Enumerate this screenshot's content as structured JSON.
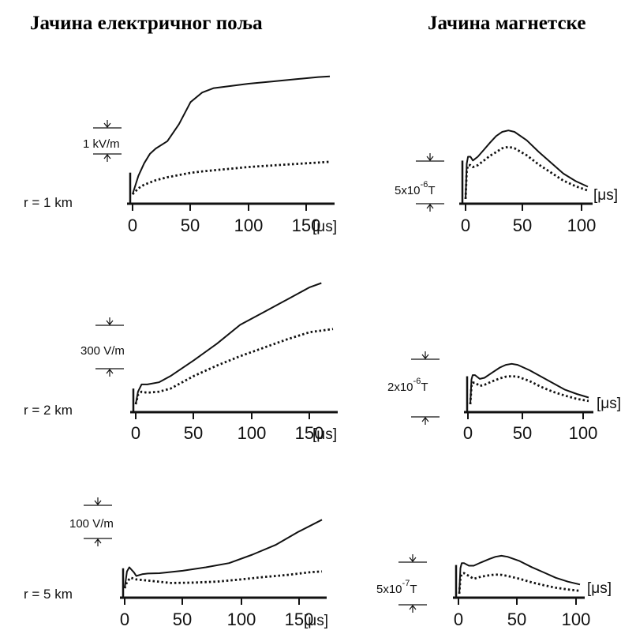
{
  "headings": {
    "electric": "Јачина електричног поља",
    "magnetic": "Јачина магнетске"
  },
  "chart_data": [
    {
      "type": "line",
      "quantity": "electric",
      "distance_label": "r = 1 km",
      "scale_label": "1 kV/m",
      "x_unit": "[μs]",
      "x_ticks": [
        "0",
        "50",
        "100",
        "150"
      ],
      "xlim": [
        0,
        170
      ],
      "ylim_kV_per_m": [
        0,
        1.8
      ],
      "series": [
        {
          "style": "solid",
          "x": [
            0,
            5,
            10,
            15,
            20,
            30,
            40,
            50,
            60,
            70,
            80,
            100,
            120,
            140,
            160,
            170
          ],
          "y": [
            0,
            0.25,
            0.42,
            0.55,
            0.62,
            0.72,
            0.95,
            1.25,
            1.38,
            1.44,
            1.46,
            1.5,
            1.53,
            1.56,
            1.59,
            1.6
          ]
        },
        {
          "style": "dotted",
          "x": [
            0,
            5,
            10,
            20,
            30,
            40,
            50,
            60,
            80,
            100,
            120,
            140,
            160,
            170
          ],
          "y": [
            0,
            0.08,
            0.13,
            0.19,
            0.23,
            0.26,
            0.29,
            0.31,
            0.34,
            0.37,
            0.39,
            0.41,
            0.43,
            0.44
          ]
        }
      ]
    },
    {
      "type": "line",
      "quantity": "electric",
      "distance_label": "r = 2 km",
      "scale_label": "300 V/m",
      "x_unit": "[μs]",
      "x_ticks": [
        "0",
        "50",
        "100",
        "150"
      ],
      "xlim": [
        0,
        170
      ],
      "ylim_V_per_m": [
        0,
        650
      ],
      "series": [
        {
          "style": "solid",
          "x": [
            0,
            2,
            5,
            10,
            20,
            30,
            50,
            70,
            90,
            110,
            130,
            150,
            160
          ],
          "y": [
            0,
            60,
            95,
            95,
            105,
            135,
            210,
            290,
            380,
            440,
            500,
            560,
            580
          ]
        },
        {
          "style": "dotted",
          "x": [
            0,
            2,
            5,
            10,
            20,
            30,
            50,
            70,
            90,
            110,
            130,
            150,
            170
          ],
          "y": [
            0,
            45,
            60,
            55,
            60,
            75,
            135,
            185,
            230,
            270,
            310,
            345,
            360
          ]
        }
      ]
    },
    {
      "type": "line",
      "quantity": "electric",
      "distance_label": "r = 5 km",
      "scale_label": "100 V/m",
      "x_unit": "[μs]",
      "x_ticks": [
        "0",
        "50",
        "100",
        "150"
      ],
      "xlim": [
        0,
        170
      ],
      "ylim_V_per_m": [
        0,
        260
      ],
      "series": [
        {
          "style": "solid",
          "x": [
            0,
            2,
            4,
            8,
            10,
            15,
            20,
            30,
            50,
            70,
            90,
            110,
            130,
            150,
            170
          ],
          "y": [
            0,
            48,
            60,
            45,
            35,
            40,
            42,
            43,
            50,
            60,
            72,
            96,
            124,
            162,
            196
          ]
        },
        {
          "style": "dotted",
          "x": [
            0,
            2,
            5,
            10,
            20,
            40,
            60,
            80,
            100,
            120,
            140,
            160,
            170
          ],
          "y": [
            0,
            18,
            30,
            25,
            22,
            15,
            16,
            19,
            25,
            32,
            38,
            46,
            48
          ]
        }
      ]
    },
    {
      "type": "line",
      "quantity": "magnetic",
      "distance_label": "r = 1 km",
      "scale_label": "5x10^-6 T",
      "scale_base": "5x10",
      "scale_exp": "-6",
      "scale_unit": "T",
      "x_unit": "[μs]",
      "x_ticks": [
        "0",
        "50",
        "100"
      ],
      "xlim": [
        0,
        100
      ],
      "ylim_uT": [
        0,
        18
      ],
      "series": [
        {
          "style": "solid",
          "x": [
            0,
            1,
            2,
            4,
            6,
            10,
            15,
            20,
            25,
            30,
            35,
            40,
            50,
            60,
            70,
            80,
            90,
            100
          ],
          "y": [
            0,
            7.5,
            9.0,
            9.0,
            8.2,
            9.0,
            10.5,
            12.0,
            13.4,
            14.3,
            14.6,
            14.3,
            12.5,
            10.0,
            7.7,
            5.4,
            3.8,
            2.6
          ]
        },
        {
          "style": "dotted",
          "x": [
            0,
            1,
            2,
            4,
            6,
            10,
            15,
            20,
            25,
            30,
            35,
            40,
            50,
            60,
            70,
            80,
            90,
            100
          ],
          "y": [
            0,
            6.0,
            7.2,
            7.2,
            6.8,
            7.2,
            8.2,
            9.2,
            10.0,
            10.8,
            11.1,
            10.8,
            9.3,
            7.3,
            5.6,
            3.9,
            2.7,
            1.8
          ]
        }
      ]
    },
    {
      "type": "line",
      "quantity": "magnetic",
      "distance_label": "r = 2 km",
      "scale_label": "2x10^-6 T",
      "scale_base": "2x10",
      "scale_exp": "-6",
      "scale_unit": "T",
      "x_unit": "[μs]",
      "x_ticks": [
        "0",
        "50",
        "100"
      ],
      "xlim": [
        0,
        100
      ],
      "ylim_uT": [
        0,
        6
      ],
      "series": [
        {
          "style": "solid",
          "x": [
            0,
            1,
            2,
            4,
            8,
            12,
            18,
            25,
            30,
            35,
            40,
            50,
            60,
            70,
            80,
            90,
            100
          ],
          "y": [
            0,
            2.3,
            2.7,
            2.7,
            2.35,
            2.45,
            2.9,
            3.4,
            3.65,
            3.75,
            3.65,
            3.15,
            2.55,
            1.95,
            1.35,
            0.95,
            0.62
          ]
        },
        {
          "style": "dotted",
          "x": [
            0,
            1,
            2,
            4,
            8,
            12,
            18,
            25,
            30,
            35,
            40,
            50,
            60,
            70,
            80,
            90,
            100
          ],
          "y": [
            0,
            1.7,
            2.0,
            2.0,
            1.7,
            1.8,
            2.1,
            2.4,
            2.55,
            2.6,
            2.55,
            2.15,
            1.6,
            1.15,
            0.8,
            0.5,
            0.3
          ]
        }
      ]
    },
    {
      "type": "line",
      "quantity": "magnetic",
      "distance_label": "r = 5 km",
      "scale_label": "5x10^-7 T",
      "scale_base": "5x10",
      "scale_exp": "-7",
      "scale_unit": "T",
      "x_unit": "[μs]",
      "x_ticks": [
        "0",
        "50",
        "100"
      ],
      "xlim": [
        0,
        100
      ],
      "ylim_uT": [
        0,
        1.6
      ],
      "series": [
        {
          "style": "solid",
          "x": [
            0,
            1,
            2,
            4,
            8,
            12,
            18,
            25,
            30,
            35,
            40,
            50,
            60,
            70,
            80,
            90,
            100
          ],
          "y": [
            0,
            0.72,
            0.86,
            0.86,
            0.79,
            0.79,
            0.88,
            0.98,
            1.04,
            1.07,
            1.04,
            0.92,
            0.75,
            0.6,
            0.45,
            0.34,
            0.26
          ]
        },
        {
          "style": "dotted",
          "x": [
            0,
            1,
            2,
            4,
            8,
            12,
            18,
            25,
            30,
            35,
            40,
            50,
            60,
            70,
            80,
            90,
            100
          ],
          "y": [
            0,
            0.45,
            0.56,
            0.58,
            0.5,
            0.42,
            0.48,
            0.52,
            0.54,
            0.53,
            0.5,
            0.42,
            0.32,
            0.24,
            0.17,
            0.12,
            0.08
          ]
        }
      ]
    }
  ]
}
